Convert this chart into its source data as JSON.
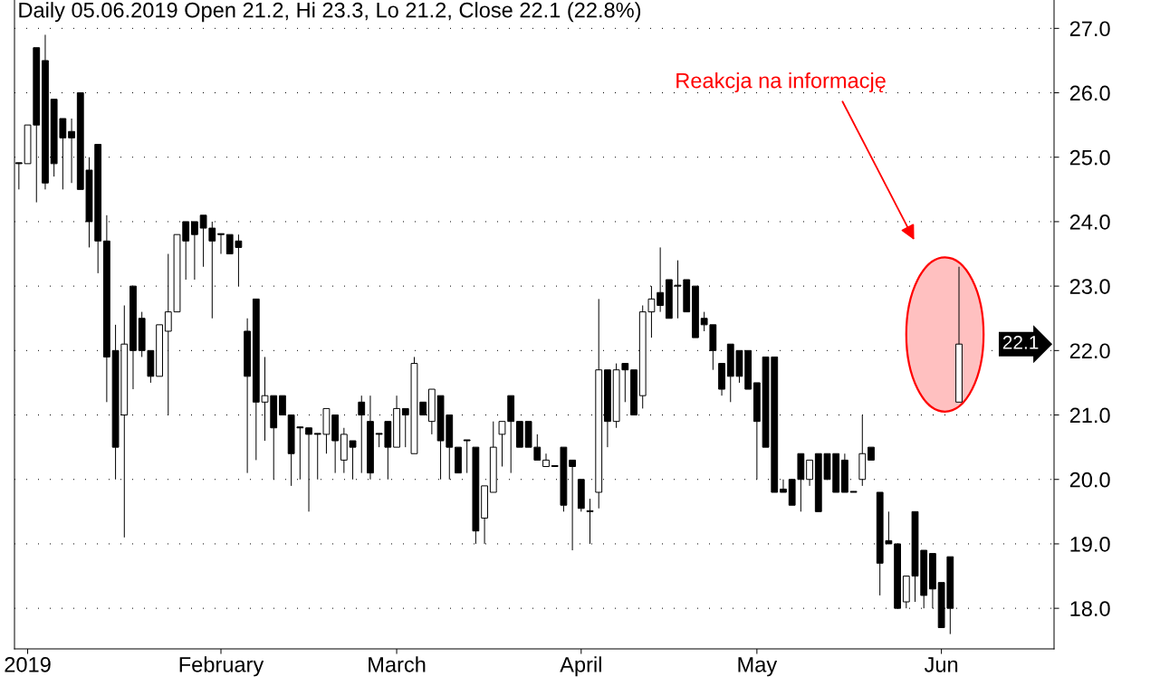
{
  "chart_data": {
    "type": "candlestick",
    "title": "Daily 05.06.2019 Open 21.2, Hi 23.3, Lo 21.2, Close 22.1 (22.8%)",
    "categories": [
      null,
      "2019",
      null,
      null,
      null,
      null,
      null,
      null,
      null,
      null,
      null,
      null,
      null,
      null,
      null,
      null,
      null,
      null,
      null,
      null,
      null,
      null,
      null,
      "February",
      null,
      null,
      null,
      null,
      null,
      null,
      null,
      null,
      null,
      null,
      null,
      null,
      null,
      null,
      null,
      null,
      null,
      null,
      null,
      "March",
      null,
      null,
      null,
      null,
      null,
      null,
      null,
      null,
      null,
      null,
      null,
      null,
      null,
      null,
      null,
      null,
      null,
      null,
      null,
      null,
      "April",
      null,
      null,
      null,
      null,
      null,
      null,
      null,
      null,
      null,
      null,
      null,
      null,
      null,
      null,
      null,
      null,
      null,
      null,
      null,
      "May",
      null,
      null,
      null,
      null,
      null,
      null,
      null,
      null,
      null,
      null,
      null,
      null,
      null,
      null,
      null,
      null,
      null,
      null,
      null,
      null,
      "Jun",
      null,
      null
    ],
    "ohlc": [
      [
        24.9,
        24.9,
        24.5,
        24.9
      ],
      [
        24.9,
        25.5,
        24.9,
        25.5
      ],
      [
        26.7,
        26.7,
        24.3,
        25.5
      ],
      [
        26.5,
        26.9,
        24.5,
        24.6
      ],
      [
        25.9,
        25.9,
        24.7,
        24.9
      ],
      [
        25.6,
        25.6,
        24.5,
        25.3
      ],
      [
        25.4,
        25.6,
        24.6,
        25.3
      ],
      [
        26.0,
        26.0,
        24.5,
        24.5
      ],
      [
        24.8,
        25.0,
        23.6,
        24.0
      ],
      [
        25.2,
        25.2,
        23.2,
        23.7
      ],
      [
        23.7,
        24.1,
        21.2,
        21.9
      ],
      [
        22.0,
        22.4,
        20.0,
        20.5
      ],
      [
        21.0,
        22.7,
        19.1,
        22.1
      ],
      [
        23.0,
        23.0,
        21.4,
        22.0
      ],
      [
        22.5,
        22.6,
        21.9,
        22.0
      ],
      [
        22.0,
        22.0,
        21.5,
        21.6
      ],
      [
        21.6,
        22.4,
        21.6,
        22.4
      ],
      [
        22.3,
        23.5,
        21.0,
        22.6
      ],
      [
        22.6,
        23.8,
        22.6,
        23.8
      ],
      [
        24.0,
        24.0,
        23.1,
        23.7
      ],
      [
        24.0,
        24.0,
        23.1,
        23.8
      ],
      [
        24.1,
        24.1,
        23.3,
        23.9
      ],
      [
        23.9,
        24.0,
        22.5,
        23.7
      ],
      [
        23.8,
        23.8,
        23.5,
        23.8
      ],
      [
        23.8,
        23.8,
        23.5,
        23.5
      ],
      [
        23.7,
        23.8,
        23.0,
        23.6
      ],
      [
        22.3,
        22.5,
        20.1,
        21.6
      ],
      [
        22.8,
        22.8,
        20.3,
        21.2
      ],
      [
        21.2,
        21.9,
        20.6,
        21.3
      ],
      [
        21.3,
        21.3,
        20.0,
        20.8
      ],
      [
        21.3,
        21.3,
        21.0,
        21.0
      ],
      [
        21.0,
        21.0,
        19.9,
        20.4
      ],
      [
        20.8,
        20.8,
        20.0,
        20.8
      ],
      [
        20.8,
        20.8,
        19.5,
        20.7
      ],
      [
        20.7,
        20.7,
        20.0,
        20.7
      ],
      [
        20.7,
        21.1,
        20.4,
        21.1
      ],
      [
        21.0,
        21.0,
        20.1,
        20.6
      ],
      [
        20.3,
        20.8,
        20.1,
        20.7
      ],
      [
        20.6,
        20.6,
        20.0,
        20.5
      ],
      [
        21.2,
        21.3,
        20.1,
        21.0
      ],
      [
        20.9,
        21.3,
        20.0,
        20.1
      ],
      [
        20.7,
        20.7,
        20.5,
        20.7
      ],
      [
        20.9,
        20.9,
        20.0,
        20.5
      ],
      [
        20.5,
        21.3,
        20.5,
        21.1
      ],
      [
        21.1,
        21.1,
        20.5,
        21.0
      ],
      [
        20.4,
        21.9,
        20.4,
        21.8
      ],
      [
        21.2,
        21.2,
        21.0,
        21.0
      ],
      [
        20.9,
        21.4,
        20.7,
        21.4
      ],
      [
        21.3,
        21.3,
        20.0,
        20.6
      ],
      [
        21.0,
        21.0,
        20.0,
        20.5
      ],
      [
        20.5,
        20.5,
        20.1,
        20.1
      ],
      [
        20.6,
        20.6,
        20.1,
        20.6
      ],
      [
        20.5,
        20.5,
        19.0,
        19.2
      ],
      [
        19.4,
        19.9,
        19.0,
        19.9
      ],
      [
        19.8,
        20.9,
        19.8,
        20.5
      ],
      [
        20.7,
        20.9,
        20.2,
        20.9
      ],
      [
        21.3,
        21.3,
        20.1,
        20.9
      ],
      [
        20.9,
        20.9,
        20.5,
        20.5
      ],
      [
        20.9,
        20.9,
        20.5,
        20.5
      ],
      [
        20.5,
        20.7,
        20.3,
        20.3
      ],
      [
        20.2,
        20.4,
        20.2,
        20.3
      ],
      [
        20.2,
        20.2,
        20.2,
        20.2
      ],
      [
        20.5,
        20.5,
        19.5,
        19.6
      ],
      [
        20.3,
        20.3,
        18.9,
        20.2
      ],
      [
        20.0,
        20.0,
        19.5,
        19.55
      ],
      [
        19.5,
        19.7,
        19.0,
        19.5
      ],
      [
        19.8,
        22.8,
        19.55,
        21.7
      ],
      [
        21.7,
        21.7,
        20.5,
        20.9
      ],
      [
        20.9,
        21.8,
        20.8,
        21.7
      ],
      [
        21.8,
        21.8,
        21.2,
        21.7
      ],
      [
        21.7,
        21.7,
        21.0,
        21.0
      ],
      [
        21.3,
        22.7,
        21.1,
        22.6
      ],
      [
        22.6,
        23.0,
        22.2,
        22.8
      ],
      [
        22.9,
        23.6,
        22.6,
        22.7
      ],
      [
        23.1,
        23.1,
        22.5,
        22.5
      ],
      [
        23.0,
        23.4,
        22.5,
        23.0
      ],
      [
        23.1,
        23.1,
        22.6,
        22.6
      ],
      [
        23.0,
        23.0,
        22.2,
        22.2
      ],
      [
        22.5,
        22.6,
        22.3,
        22.4
      ],
      [
        22.4,
        22.4,
        21.7,
        22.0
      ],
      [
        21.8,
        21.8,
        21.3,
        21.4
      ],
      [
        22.1,
        22.1,
        21.2,
        21.6
      ],
      [
        22.0,
        22.0,
        21.5,
        21.6
      ],
      [
        22.0,
        22.0,
        21.4,
        21.4
      ],
      [
        21.5,
        21.5,
        20.0,
        20.9
      ],
      [
        21.9,
        21.9,
        20.5,
        20.5
      ],
      [
        21.9,
        21.9,
        19.8,
        19.8
      ],
      [
        19.85,
        20.0,
        19.8,
        19.8
      ],
      [
        20.0,
        20.0,
        19.6,
        19.6
      ],
      [
        20.4,
        20.4,
        19.5,
        20.0
      ],
      [
        20.0,
        20.3,
        19.9,
        20.3
      ],
      [
        20.4,
        20.4,
        19.5,
        19.5
      ],
      [
        20.4,
        20.4,
        20.0,
        20.0
      ],
      [
        20.4,
        20.4,
        19.8,
        19.8
      ],
      [
        20.3,
        20.4,
        19.8,
        19.8
      ],
      [
        19.8,
        19.8,
        19.8,
        19.8
      ],
      [
        20.0,
        21.0,
        19.9,
        20.4
      ],
      [
        20.5,
        20.5,
        20.3,
        20.3
      ],
      [
        19.8,
        19.8,
        18.2,
        18.7
      ],
      [
        19.05,
        19.5,
        19.0,
        19.0
      ],
      [
        19.0,
        19.0,
        18.0,
        18.0
      ],
      [
        18.1,
        18.5,
        18.0,
        18.5
      ],
      [
        19.5,
        19.5,
        18.1,
        18.5
      ],
      [
        18.9,
        18.9,
        18.0,
        18.2
      ],
      [
        18.85,
        18.85,
        18.0,
        18.3
      ],
      [
        18.4,
        18.4,
        17.7,
        17.7
      ],
      [
        18.8,
        18.8,
        17.6,
        18.0
      ],
      [
        21.2,
        23.3,
        21.2,
        22.1
      ]
    ],
    "color": "#000000",
    "colors": [
      "#000000",
      "#ffffff",
      "#000000",
      "#000000",
      "#000000",
      "#000000",
      "#000000",
      "#000000",
      "#000000",
      "#000000",
      "#000000",
      "#000000",
      "#ffffff",
      "#000000",
      "#000000",
      "#000000",
      "#ffffff",
      "#ffffff",
      "#ffffff",
      "#000000",
      "#000000",
      "#000000",
      "#000000",
      "#000000",
      "#000000",
      "#000000",
      "#000000",
      "#000000",
      "#ffffff",
      "#000000",
      "#000000",
      "#000000",
      "#000000",
      "#000000",
      "#000000",
      "#ffffff",
      "#000000",
      "#ffffff",
      "#000000",
      "#000000",
      "#000000",
      "#000000",
      "#000000",
      "#ffffff",
      "#000000",
      "#ffffff",
      "#000000",
      "#ffffff",
      "#000000",
      "#000000",
      "#000000",
      "#000000",
      "#000000",
      "#ffffff",
      "#ffffff",
      "#ffffff",
      "#000000",
      "#000000",
      "#000000",
      "#000000",
      "#ffffff",
      "#000000",
      "#000000",
      "#000000",
      "#000000",
      "#000000",
      "#ffffff",
      "#000000",
      "#ffffff",
      "#000000",
      "#000000",
      "#ffffff",
      "#ffffff",
      "#000000",
      "#000000",
      "#000000",
      "#000000",
      "#000000",
      "#000000",
      "#000000",
      "#000000",
      "#000000",
      "#000000",
      "#000000",
      "#000000",
      "#000000",
      "#000000",
      "#000000",
      "#000000",
      "#000000",
      "#ffffff",
      "#000000",
      "#000000",
      "#000000",
      "#000000",
      "#000000",
      "#ffffff",
      "#000000",
      "#000000",
      "#000000",
      "#000000",
      "#ffffff",
      "#000000",
      "#000000",
      "#000000",
      "#000000",
      "#000000",
      "#ffffff"
    ],
    "ylim": [
      17.37,
      27.44
    ],
    "yticks": [
      {
        "value": 18,
        "label": "18.0"
      },
      {
        "value": 19,
        "label": "19.0"
      },
      {
        "value": 20,
        "label": "20.0"
      },
      {
        "value": 21,
        "label": "21.0"
      },
      {
        "value": 22,
        "label": "22.0"
      },
      {
        "value": 23,
        "label": "23.0"
      },
      {
        "value": 24,
        "label": "24.0"
      },
      {
        "value": 25,
        "label": "25.0"
      },
      {
        "value": 26,
        "label": "26.0"
      },
      {
        "value": 27,
        "label": "27.0"
      }
    ],
    "grid": "y",
    "annotations": [
      "22.1",
      "Reakcja na informację"
    ]
  }
}
